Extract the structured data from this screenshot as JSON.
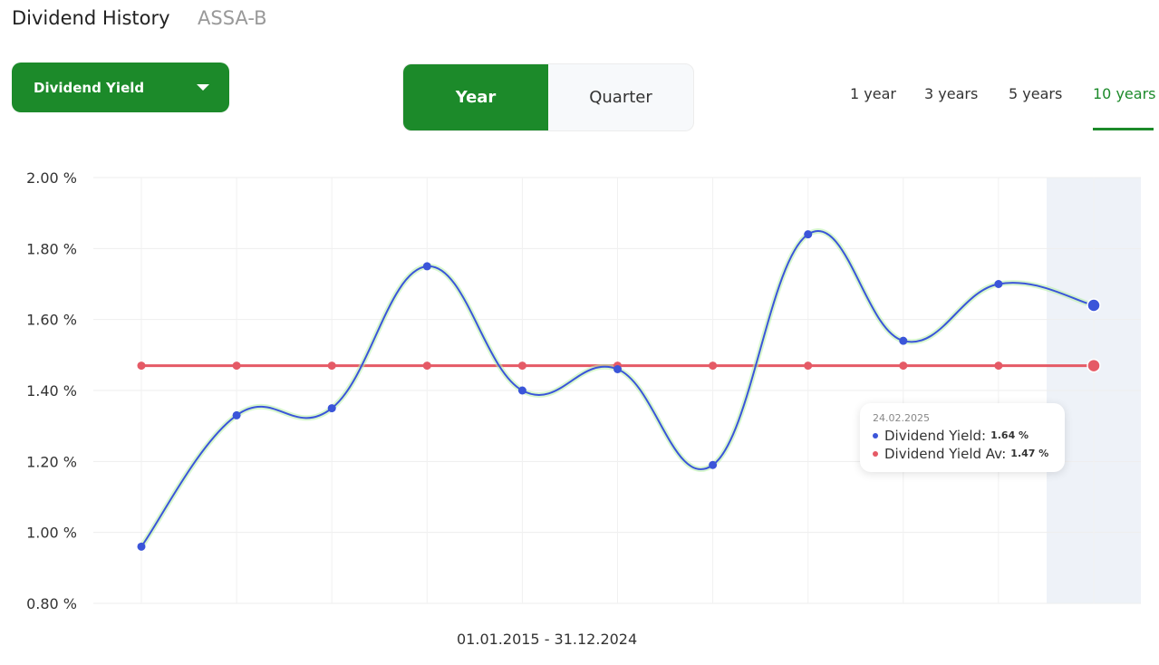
{
  "header": {
    "title": "Dividend History",
    "ticker": "ASSA-B"
  },
  "metric_dropdown": {
    "label": "Dividend Yield",
    "icon": "caret-down-icon"
  },
  "period_toggle": {
    "options": [
      "Year",
      "Quarter"
    ],
    "selected": "Year"
  },
  "range_tabs": {
    "items": [
      "1 year",
      "3 years",
      "5 years",
      "10 years"
    ],
    "selected": "10 years"
  },
  "colors": {
    "accent": "#1c8a2a",
    "series_yield": "#3b55d9",
    "series_avg": "#e55a66",
    "highlight": "#eef2f8"
  },
  "chart_data": {
    "type": "line",
    "y_ticks": [
      "2.00 %",
      "1.80 %",
      "1.60 %",
      "1.40 %",
      "1.20 %",
      "1.00 %",
      "0.80 %"
    ],
    "ylim": [
      0.8,
      2.0
    ],
    "xlabel": "01.01.2015 - 31.12.2024",
    "series": [
      {
        "name": "Dividend Yield",
        "values": [
          0.96,
          1.33,
          1.35,
          1.75,
          1.4,
          1.46,
          1.19,
          1.84,
          1.54,
          1.7,
          1.64
        ]
      },
      {
        "name": "Dividend Yield Av",
        "values": [
          1.47,
          1.47,
          1.47,
          1.47,
          1.47,
          1.47,
          1.47,
          1.47,
          1.47,
          1.47,
          1.47
        ]
      }
    ],
    "highlight_index": 10,
    "grid": true
  },
  "tooltip": {
    "date": "24.02.2025",
    "rows": [
      {
        "label": "Dividend Yield:",
        "value": "1.64 %"
      },
      {
        "label": "Dividend Yield Av:",
        "value": "1.47 %"
      }
    ]
  }
}
